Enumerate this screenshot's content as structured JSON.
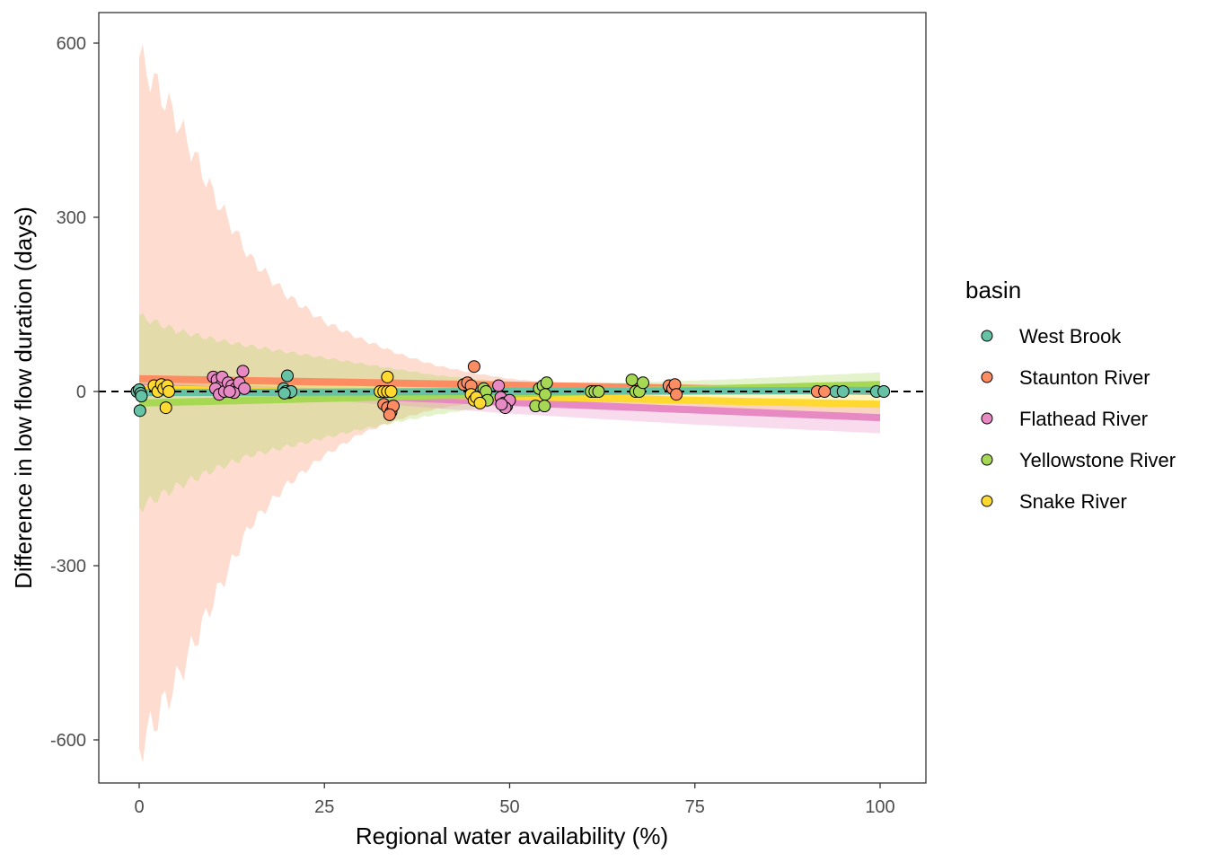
{
  "chart_data": {
    "type": "scatter",
    "title": "",
    "xlabel": "Regional water availability (%)",
    "ylabel": "Difference in low flow duration (days)",
    "xlim": [
      -5.5,
      106
    ],
    "ylim": [
      -674,
      650
    ],
    "x_ticks": [
      0,
      25,
      50,
      75,
      100
    ],
    "x_tick_labels": [
      "0",
      "25",
      "50",
      "75",
      "100"
    ],
    "y_ticks": [
      600,
      300,
      0,
      -300,
      -600
    ],
    "y_tick_labels": [
      "600",
      "300",
      "0",
      "-300",
      "-600"
    ],
    "grid": false,
    "reference_line": {
      "y": 0,
      "style": "dashed",
      "color": "#000000"
    },
    "legend": {
      "title": "basin",
      "position": "right",
      "entries": [
        "West Brook",
        "Staunton River",
        "Flathead River",
        "Yellowstone River",
        "Snake River"
      ]
    },
    "series": [
      {
        "name": "West Brook",
        "color": "#66c2a5",
        "fit": {
          "x": [
            0,
            100
          ],
          "y": [
            -2,
            2
          ]
        },
        "ribbon": {
          "x": [
            0,
            100
          ],
          "lower": [
            -8,
            -4
          ],
          "upper": [
            4,
            8
          ]
        },
        "points": [
          {
            "x": -0.3,
            "y": 0
          },
          {
            "x": 0,
            "y": 3
          },
          {
            "x": 0.2,
            "y": -3
          },
          {
            "x": 0.3,
            "y": -8
          },
          {
            "x": 0.1,
            "y": -33
          },
          {
            "x": 19.5,
            "y": 5
          },
          {
            "x": 19.8,
            "y": 0
          },
          {
            "x": 20,
            "y": 27
          },
          {
            "x": 20.2,
            "y": -2
          },
          {
            "x": 20.5,
            "y": 0
          },
          {
            "x": 19.6,
            "y": -3
          },
          {
            "x": 94,
            "y": 0
          },
          {
            "x": 95,
            "y": 0
          },
          {
            "x": 99.5,
            "y": 0
          },
          {
            "x": 100.5,
            "y": 0
          }
        ]
      },
      {
        "name": "Staunton River",
        "color": "#fc8d62",
        "fit": {
          "x": [
            0,
            100
          ],
          "y": [
            22,
            0
          ]
        },
        "ribbon": {
          "x": [
            0,
            5,
            10,
            15,
            20,
            25,
            30,
            35,
            40,
            45,
            50,
            55,
            60,
            65,
            70,
            75,
            80,
            85,
            90,
            95,
            100
          ],
          "lower": [
            -615,
            -500,
            -360,
            -230,
            -160,
            -110,
            -72,
            -48,
            -30,
            -20,
            -14,
            -11,
            -9,
            -8,
            -7,
            -6,
            -6,
            -6,
            -6,
            -6,
            -6
          ],
          "upper": [
            575,
            470,
            340,
            230,
            165,
            120,
            90,
            65,
            45,
            32,
            22,
            16,
            12,
            10,
            9,
            8,
            8,
            8,
            8,
            8,
            8
          ]
        },
        "points": [
          {
            "x": 33,
            "y": -22
          },
          {
            "x": 33.5,
            "y": -28
          },
          {
            "x": 34,
            "y": -35
          },
          {
            "x": 34.3,
            "y": -25
          },
          {
            "x": 33.8,
            "y": -40
          },
          {
            "x": 43.8,
            "y": 12
          },
          {
            "x": 44.3,
            "y": 15
          },
          {
            "x": 44.8,
            "y": 10
          },
          {
            "x": 45.2,
            "y": 43
          },
          {
            "x": 71.5,
            "y": 10
          },
          {
            "x": 72,
            "y": 5
          },
          {
            "x": 72.3,
            "y": 12
          },
          {
            "x": 72.5,
            "y": -5
          },
          {
            "x": 91.5,
            "y": 0
          },
          {
            "x": 92.5,
            "y": 0
          }
        ]
      },
      {
        "name": "Flathead River",
        "color": "#e78ac3",
        "fit": {
          "x": [
            0,
            100
          ],
          "y": [
            8,
            -45
          ]
        },
        "ribbon": {
          "x": [
            0,
            25,
            50,
            75,
            100
          ],
          "lower": [
            -2,
            -15,
            -38,
            -57,
            -72
          ],
          "upper": [
            18,
            5,
            -5,
            -12,
            -18
          ]
        },
        "points": [
          {
            "x": 10,
            "y": 25
          },
          {
            "x": 10.5,
            "y": 20
          },
          {
            "x": 11,
            "y": 10
          },
          {
            "x": 11.2,
            "y": 25
          },
          {
            "x": 10.3,
            "y": 5
          },
          {
            "x": 10.8,
            "y": -5
          },
          {
            "x": 11.5,
            "y": 0
          },
          {
            "x": 12,
            "y": 15
          },
          {
            "x": 12.5,
            "y": 10
          },
          {
            "x": 13,
            "y": 5
          },
          {
            "x": 12.8,
            "y": -2
          },
          {
            "x": 13.5,
            "y": 15
          },
          {
            "x": 14,
            "y": 35
          },
          {
            "x": 14.2,
            "y": 5
          },
          {
            "x": 12.2,
            "y": 0
          },
          {
            "x": 48.5,
            "y": 10
          },
          {
            "x": 48.8,
            "y": -10
          },
          {
            "x": 49.2,
            "y": -20
          },
          {
            "x": 49.6,
            "y": -25
          },
          {
            "x": 50,
            "y": -15
          },
          {
            "x": 49.4,
            "y": -28
          },
          {
            "x": 48.9,
            "y": -22
          }
        ]
      },
      {
        "name": "Yellowstone River",
        "color": "#a6d854",
        "fit": {
          "x": [
            0,
            100
          ],
          "y": [
            -20,
            12
          ]
        },
        "ribbon": {
          "x": [
            0,
            5,
            10,
            15,
            20,
            25,
            30,
            35,
            40,
            45,
            50,
            55,
            60,
            65,
            70,
            75,
            80,
            85,
            90,
            95,
            100
          ],
          "lower": [
            -200,
            -165,
            -135,
            -110,
            -95,
            -80,
            -65,
            -52,
            -40,
            -30,
            -22,
            -16,
            -12,
            -8,
            -5,
            -3,
            -2,
            -1,
            0,
            1,
            2
          ],
          "upper": [
            130,
            105,
            90,
            78,
            68,
            58,
            48,
            38,
            28,
            22,
            16,
            14,
            14,
            15,
            17,
            19,
            21,
            24,
            27,
            30,
            33
          ]
        },
        "points": [
          {
            "x": 46.5,
            "y": 5
          },
          {
            "x": 46.8,
            "y": 0
          },
          {
            "x": 47,
            "y": -15
          },
          {
            "x": 53.5,
            "y": -25
          },
          {
            "x": 54,
            "y": 5
          },
          {
            "x": 54.5,
            "y": 10
          },
          {
            "x": 54.8,
            "y": -5
          },
          {
            "x": 55,
            "y": 15
          },
          {
            "x": 54.7,
            "y": -25
          },
          {
            "x": 61,
            "y": 0
          },
          {
            "x": 61.5,
            "y": 0
          },
          {
            "x": 62,
            "y": 0
          },
          {
            "x": 66.5,
            "y": 20
          },
          {
            "x": 67,
            "y": 0
          },
          {
            "x": 67.5,
            "y": 0
          },
          {
            "x": 68,
            "y": 15
          }
        ]
      },
      {
        "name": "Snake River",
        "color": "#ffd92f",
        "fit": {
          "x": [
            0,
            100
          ],
          "y": [
            5,
            -22
          ]
        },
        "ribbon": {
          "x": [
            0,
            25,
            50,
            75,
            100
          ],
          "lower": [
            -5,
            -10,
            -20,
            -30,
            -38
          ],
          "upper": [
            25,
            15,
            8,
            2,
            -5
          ]
        },
        "points": [
          {
            "x": 2,
            "y": 10
          },
          {
            "x": 2.5,
            "y": 0
          },
          {
            "x": 3,
            "y": 12
          },
          {
            "x": 3.3,
            "y": 5
          },
          {
            "x": 3.8,
            "y": 10
          },
          {
            "x": 3.6,
            "y": -28
          },
          {
            "x": 4,
            "y": 0
          },
          {
            "x": 32.5,
            "y": 0
          },
          {
            "x": 33,
            "y": 0
          },
          {
            "x": 33.5,
            "y": 0
          },
          {
            "x": 34,
            "y": 0
          },
          {
            "x": 33.5,
            "y": 25
          },
          {
            "x": 44.8,
            "y": -5
          },
          {
            "x": 45.2,
            "y": -15
          },
          {
            "x": 45.5,
            "y": -10
          },
          {
            "x": 46,
            "y": -20
          }
        ]
      }
    ]
  }
}
